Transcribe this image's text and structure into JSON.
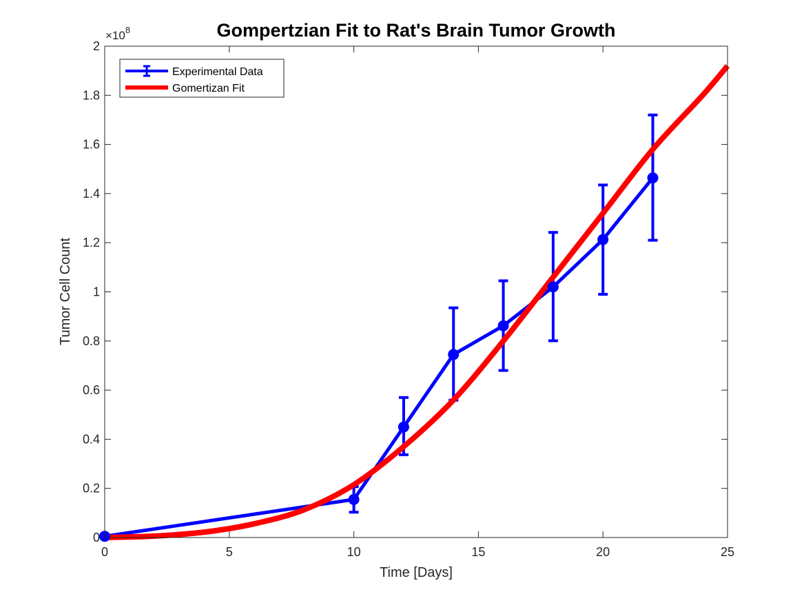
{
  "chart_data": {
    "type": "line",
    "title": "Gompertzian Fit to Rat's Brain Tumor Growth",
    "xlabel": "Time [Days]",
    "ylabel": "Tumor Cell Count",
    "xlim": [
      0,
      25
    ],
    "ylim": [
      0,
      2
    ],
    "y_exponent_label": "×10",
    "y_exponent_power": "8",
    "x_ticks": [
      0,
      5,
      10,
      15,
      20,
      25
    ],
    "y_ticks": [
      0,
      0.2,
      0.4,
      0.6,
      0.8,
      1,
      1.2,
      1.4,
      1.6,
      1.8,
      2
    ],
    "x_tick_labels": [
      "0",
      "5",
      "10",
      "15",
      "20",
      "25"
    ],
    "y_tick_labels": [
      "0",
      "0.2",
      "0.4",
      "0.6",
      "0.8",
      "1",
      "1.2",
      "1.4",
      "1.6",
      "1.8",
      "2"
    ],
    "grid": false,
    "legend_position": "top-left",
    "series": [
      {
        "name": "Experimental Data",
        "kind": "errorbar",
        "color": "#0000ff",
        "x": [
          0,
          10,
          12,
          14,
          16,
          18,
          20,
          22
        ],
        "y": [
          0.005,
          0.155,
          0.45,
          0.745,
          0.862,
          1.02,
          1.213,
          1.464
        ],
        "err_low": [
          0.002,
          0.052,
          0.113,
          0.186,
          0.182,
          0.219,
          0.223,
          0.254
        ],
        "err_high": [
          0.002,
          0.052,
          0.12,
          0.19,
          0.183,
          0.222,
          0.222,
          0.256
        ]
      },
      {
        "name": "Gomertizan Fit",
        "kind": "line",
        "color": "#ff0000",
        "x": [
          0,
          2,
          4,
          6,
          8,
          10,
          12,
          14,
          16,
          18,
          20,
          22,
          24,
          25
        ],
        "y": [
          0.0,
          0.006,
          0.022,
          0.056,
          0.113,
          0.215,
          0.37,
          0.56,
          0.8,
          1.06,
          1.32,
          1.58,
          1.8,
          1.92
        ]
      }
    ]
  }
}
